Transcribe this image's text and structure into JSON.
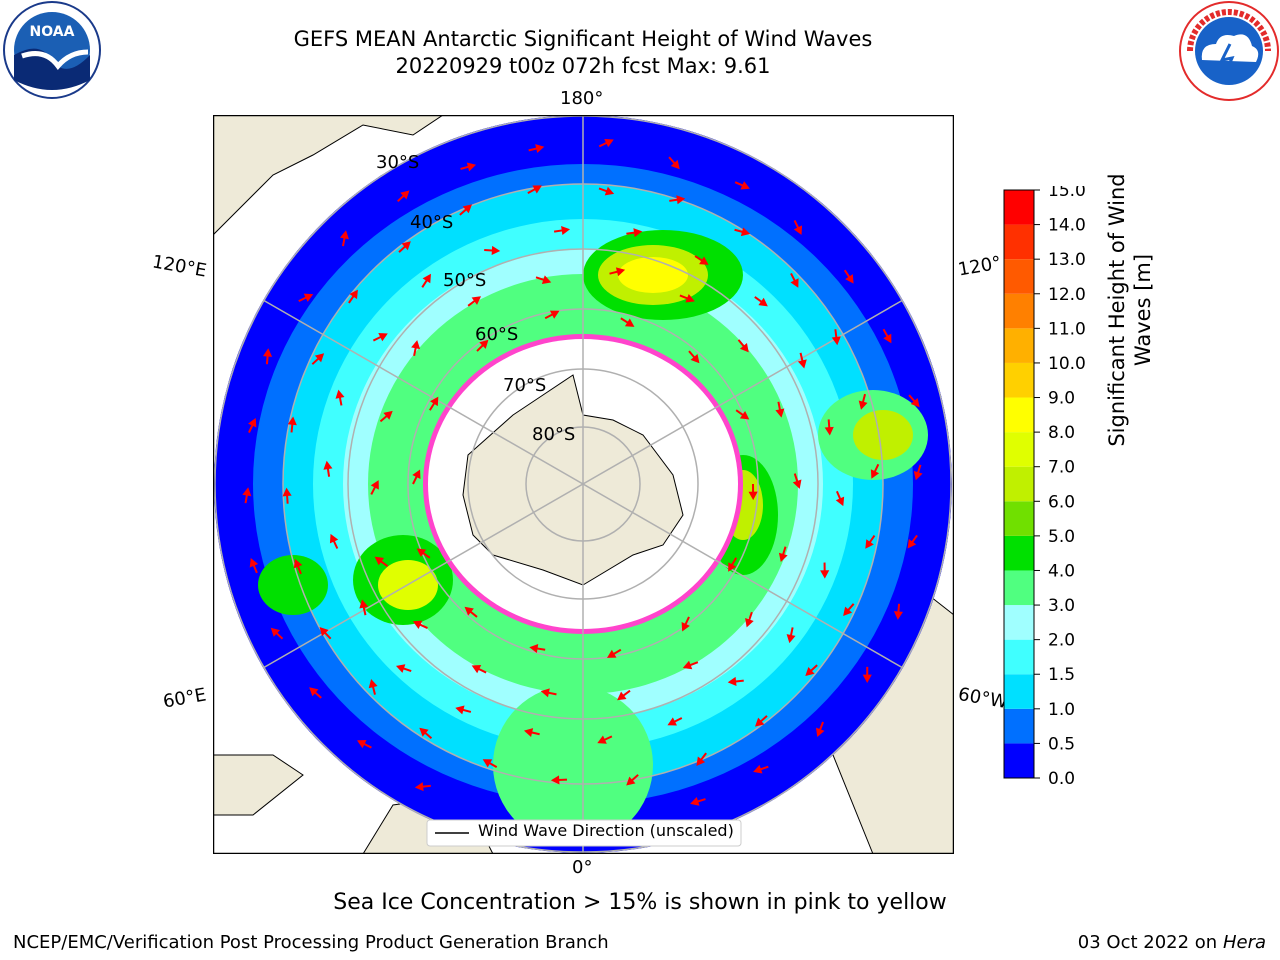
{
  "title": {
    "line1": "GEFS MEAN Antarctic Significant Height of Wind Waves",
    "line2": "20220929 t00z 072h fcst   Max: 9.61"
  },
  "logos": {
    "left": {
      "name": "NOAA",
      "icon": "noaa-logo"
    },
    "right": {
      "name": "NATIONAL WEATHER SERVICE",
      "icon": "nws-logo"
    }
  },
  "map": {
    "projection": "south-polar-stereographic",
    "longitude_labels": {
      "top": "180°",
      "bottom": "0°",
      "upper_left": "120°E",
      "upper_right": "120°",
      "lower_left": "60°E",
      "lower_right": "60°W"
    },
    "latitude_labels": [
      "30°S",
      "40°S",
      "50°S",
      "60°S",
      "70°S",
      "80°S"
    ],
    "legend": "Wind Wave Direction (unscaled)",
    "colors": {
      "land": "#eeead8",
      "ocean_low": "#0000ff",
      "graticule": "#b0b0b0",
      "arrows": "#ff0000",
      "sea_ice": "#ff44cc"
    }
  },
  "colorbar": {
    "label": "Significant Height of Wind Waves [m]",
    "ticks": [
      "0.0",
      "0.5",
      "1.0",
      "1.5",
      "2.0",
      "3.0",
      "4.0",
      "5.0",
      "6.0",
      "7.0",
      "8.0",
      "9.0",
      "10.0",
      "11.0",
      "12.0",
      "13.0",
      "14.0",
      "15.0"
    ],
    "colors": [
      "#0000ff",
      "#0070ff",
      "#00e0ff",
      "#40ffff",
      "#a0ffff",
      "#50ff80",
      "#00e000",
      "#70e000",
      "#c0f000",
      "#e0ff00",
      "#ffff00",
      "#ffd000",
      "#ffb000",
      "#ff8000",
      "#ff5a00",
      "#ff3000",
      "#ff0000"
    ]
  },
  "ice_note": "Sea Ice Concentration > 15% is shown in pink to yellow",
  "footer": {
    "left": "NCEP/EMC/Verification Post Processing Product Generation Branch",
    "right_prefix": "03 Oct 2022 on ",
    "right_host": "Hera"
  }
}
